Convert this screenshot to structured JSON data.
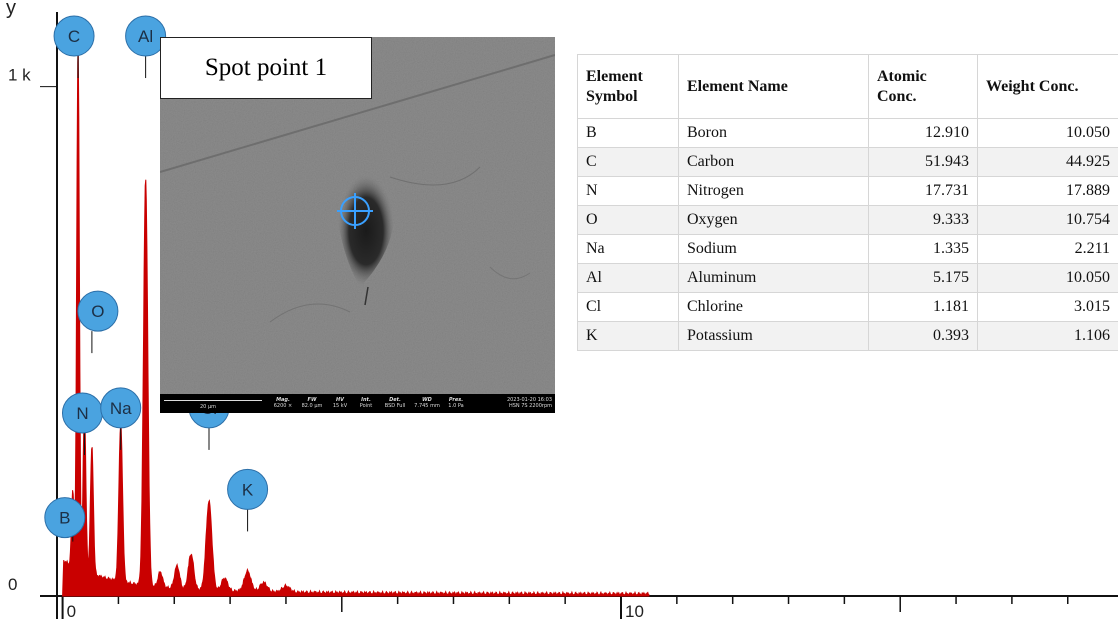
{
  "chart_data": {
    "type": "line",
    "title": "",
    "xlabel": "",
    "ylabel": "",
    "xlim": [
      -0.1,
      18.9
    ],
    "ylim": [
      0,
      1170
    ],
    "y_ticks": [
      {
        "value": 0,
        "label": "0"
      },
      {
        "value": 1000,
        "label": "1 k"
      }
    ],
    "x_ticks": [
      {
        "value": 0,
        "label": "0"
      },
      {
        "value": 10,
        "label": "10"
      }
    ],
    "axis_top_label": "y",
    "series_color": "#c90000",
    "peak_lines": [
      {
        "element": "B",
        "energy": 0.183,
        "counts": 150
      },
      {
        "element": "C",
        "energy": 0.277,
        "counts": 1040
      },
      {
        "element": "N",
        "energy": 0.392,
        "counts": 320
      },
      {
        "element": "O",
        "energy": 0.525,
        "counts": 250
      },
      {
        "element": "Na",
        "energy": 1.041,
        "counts": 310
      },
      {
        "element": "Al",
        "energy": 1.487,
        "counts": 800
      },
      {
        "element": "Cl",
        "energy": 2.622,
        "counts": 175
      },
      {
        "element": "K",
        "energy": 3.313,
        "counts": 40
      }
    ],
    "peak_labels": [
      "B",
      "C",
      "N",
      "O",
      "Na",
      "Al",
      "Cl",
      "K"
    ],
    "label_color": "#4aa3e0",
    "grid": false
  },
  "sem_image": {
    "title": "Spot point 1",
    "scale_bar": "20 µm",
    "info_headers": [
      "Mag.",
      "FW",
      "HV",
      "Int.",
      "Det.",
      "WD",
      "Pres."
    ],
    "info_values": [
      "6200 ×",
      "82.0 µm",
      "15 kV",
      "Point",
      "BSD Full",
      "7.745 mm",
      "1.0 Pa"
    ],
    "datetime": "2023-01-20 16:03",
    "instrument": "HSN 7S 2200rpm"
  },
  "table": {
    "headers": [
      "Element Symbol",
      "Element Name",
      "Atomic Conc.",
      "Weight Conc."
    ],
    "rows": [
      {
        "symbol": "B",
        "name": "Boron",
        "atomic": "12.910",
        "weight": "10.050"
      },
      {
        "symbol": "C",
        "name": "Carbon",
        "atomic": "51.943",
        "weight": "44.925"
      },
      {
        "symbol": "N",
        "name": "Nitrogen",
        "atomic": "17.731",
        "weight": "17.889"
      },
      {
        "symbol": "O",
        "name": "Oxygen",
        "atomic": "9.333",
        "weight": "10.754"
      },
      {
        "symbol": "Na",
        "name": "Sodium",
        "atomic": "1.335",
        "weight": "2.211"
      },
      {
        "symbol": "Al",
        "name": "Aluminum",
        "atomic": "5.175",
        "weight": "10.050"
      },
      {
        "symbol": "Cl",
        "name": "Chlorine",
        "atomic": "1.181",
        "weight": "3.015"
      },
      {
        "symbol": "K",
        "name": "Potassium",
        "atomic": "0.393",
        "weight": "1.106"
      }
    ]
  }
}
